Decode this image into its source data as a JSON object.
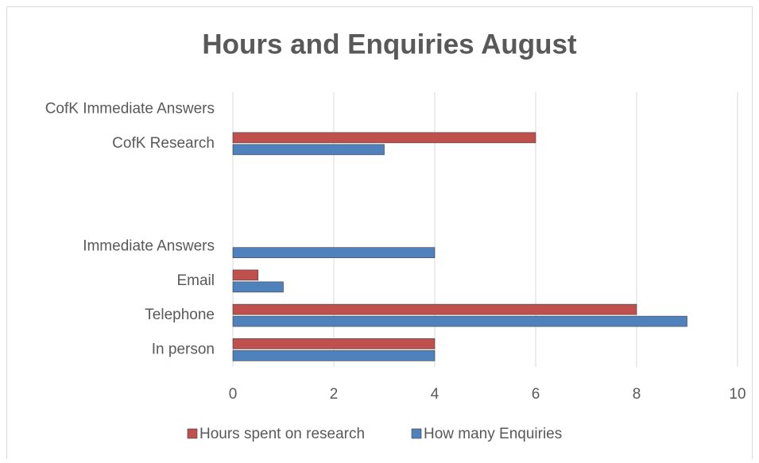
{
  "chart_data": {
    "type": "hbar",
    "title": "Hours and Enquiries August",
    "categories": [
      "In person",
      "Telephone",
      "Email",
      "Immediate Answers",
      null,
      null,
      "CofK Research",
      "CofK Immediate Answers"
    ],
    "series": [
      {
        "name": "Hours spent on research",
        "color": "#c0504d",
        "values": [
          4,
          8,
          0.5,
          null,
          null,
          null,
          6,
          null
        ]
      },
      {
        "name": "How many Enquiries",
        "color": "#4f81bd",
        "values": [
          4,
          9,
          1,
          4,
          null,
          null,
          3,
          null
        ]
      }
    ],
    "xlim": [
      0,
      10
    ],
    "xticks": [
      0,
      2,
      4,
      6,
      8,
      10
    ],
    "grid": true,
    "legend": "bottom"
  }
}
